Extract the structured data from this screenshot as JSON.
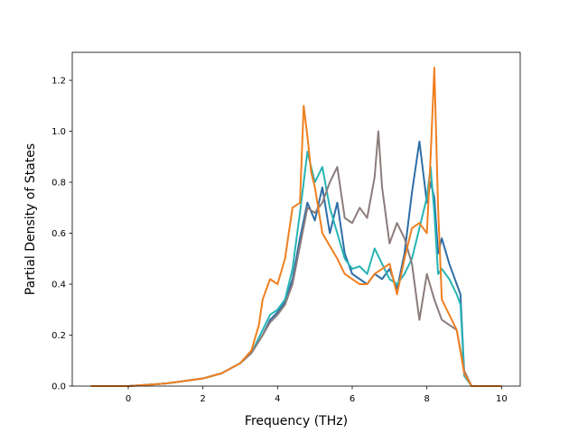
{
  "chart_data": {
    "type": "line",
    "xlabel": "Frequency (THz)",
    "ylabel": "Partial Density of States",
    "xlim": [
      -1.5,
      10.5
    ],
    "ylim": [
      0.0,
      1.31
    ],
    "xticks": [
      "0",
      "2",
      "4",
      "6",
      "8",
      "10"
    ],
    "yticks": [
      "0.0",
      "0.2",
      "0.4",
      "0.6",
      "0.8",
      "1.0",
      "1.2"
    ],
    "grid": false,
    "series": [
      {
        "color": "#2e6ea6",
        "x": [
          -1.0,
          0.0,
          0.5,
          1.0,
          1.5,
          2.0,
          2.5,
          3.0,
          3.3,
          3.6,
          3.8,
          4.0,
          4.2,
          4.4,
          4.6,
          4.8,
          5.0,
          5.2,
          5.4,
          5.6,
          5.8,
          6.0,
          6.2,
          6.4,
          6.6,
          6.8,
          7.0,
          7.2,
          7.4,
          7.6,
          7.8,
          8.0,
          8.1,
          8.2,
          8.3,
          8.4,
          8.6,
          8.8,
          8.9,
          9.0,
          9.2,
          10.0
        ],
        "y": [
          0.0,
          0.0,
          0.005,
          0.01,
          0.02,
          0.03,
          0.05,
          0.09,
          0.13,
          0.2,
          0.26,
          0.29,
          0.33,
          0.42,
          0.58,
          0.72,
          0.65,
          0.78,
          0.6,
          0.72,
          0.52,
          0.44,
          0.42,
          0.4,
          0.44,
          0.42,
          0.46,
          0.38,
          0.52,
          0.76,
          0.96,
          0.72,
          0.8,
          0.74,
          0.52,
          0.58,
          0.48,
          0.4,
          0.36,
          0.05,
          0.0,
          0.0
        ]
      },
      {
        "color": "#28b4b4",
        "x": [
          -1.0,
          0.0,
          0.5,
          1.0,
          1.5,
          2.0,
          2.5,
          3.0,
          3.3,
          3.6,
          3.8,
          4.0,
          4.2,
          4.4,
          4.6,
          4.8,
          5.0,
          5.2,
          5.4,
          5.6,
          5.8,
          6.0,
          6.2,
          6.4,
          6.6,
          6.8,
          7.0,
          7.2,
          7.4,
          7.6,
          7.8,
          8.0,
          8.1,
          8.2,
          8.3,
          8.4,
          8.6,
          8.8,
          8.9,
          9.0,
          9.2,
          10.0
        ],
        "y": [
          0.0,
          0.0,
          0.005,
          0.01,
          0.02,
          0.03,
          0.05,
          0.09,
          0.13,
          0.22,
          0.28,
          0.3,
          0.34,
          0.46,
          0.68,
          0.92,
          0.8,
          0.86,
          0.7,
          0.6,
          0.5,
          0.46,
          0.47,
          0.44,
          0.54,
          0.48,
          0.42,
          0.4,
          0.44,
          0.5,
          0.62,
          0.74,
          0.86,
          0.68,
          0.44,
          0.46,
          0.42,
          0.36,
          0.32,
          0.04,
          0.0,
          0.0
        ]
      },
      {
        "color": "#8c7c7c",
        "x": [
          -1.0,
          0.0,
          0.5,
          1.0,
          1.5,
          2.0,
          2.5,
          3.0,
          3.3,
          3.6,
          3.8,
          4.0,
          4.2,
          4.4,
          4.6,
          4.8,
          5.0,
          5.2,
          5.4,
          5.6,
          5.8,
          6.0,
          6.2,
          6.4,
          6.6,
          6.7,
          6.8,
          7.0,
          7.2,
          7.4,
          7.6,
          7.8,
          8.0,
          8.2,
          8.4,
          8.6,
          8.8,
          9.0,
          9.2,
          10.0
        ],
        "y": [
          0.0,
          0.0,
          0.005,
          0.01,
          0.02,
          0.03,
          0.05,
          0.09,
          0.13,
          0.2,
          0.25,
          0.28,
          0.32,
          0.4,
          0.55,
          0.7,
          0.68,
          0.72,
          0.8,
          0.86,
          0.66,
          0.64,
          0.7,
          0.66,
          0.82,
          1.0,
          0.78,
          0.56,
          0.64,
          0.58,
          0.48,
          0.26,
          0.44,
          0.34,
          0.26,
          0.24,
          0.22,
          0.06,
          0.0,
          0.0
        ]
      },
      {
        "color": "#f08020",
        "x": [
          -1.0,
          0.0,
          0.5,
          1.0,
          1.5,
          2.0,
          2.5,
          3.0,
          3.3,
          3.5,
          3.6,
          3.8,
          4.0,
          4.2,
          4.4,
          4.6,
          4.7,
          4.8,
          4.9,
          5.0,
          5.2,
          5.4,
          5.6,
          5.8,
          6.0,
          6.2,
          6.4,
          6.6,
          6.8,
          7.0,
          7.2,
          7.4,
          7.6,
          7.8,
          8.0,
          8.1,
          8.2,
          8.3,
          8.4,
          8.6,
          8.8,
          9.0,
          9.2,
          10.0
        ],
        "y": [
          0.0,
          0.0,
          0.005,
          0.01,
          0.02,
          0.03,
          0.05,
          0.09,
          0.14,
          0.24,
          0.34,
          0.42,
          0.4,
          0.5,
          0.7,
          0.72,
          1.1,
          0.98,
          0.84,
          0.78,
          0.6,
          0.55,
          0.5,
          0.44,
          0.42,
          0.4,
          0.4,
          0.44,
          0.46,
          0.48,
          0.36,
          0.5,
          0.62,
          0.64,
          0.6,
          0.9,
          1.25,
          0.7,
          0.34,
          0.28,
          0.22,
          0.05,
          0.0,
          0.0
        ]
      }
    ]
  }
}
